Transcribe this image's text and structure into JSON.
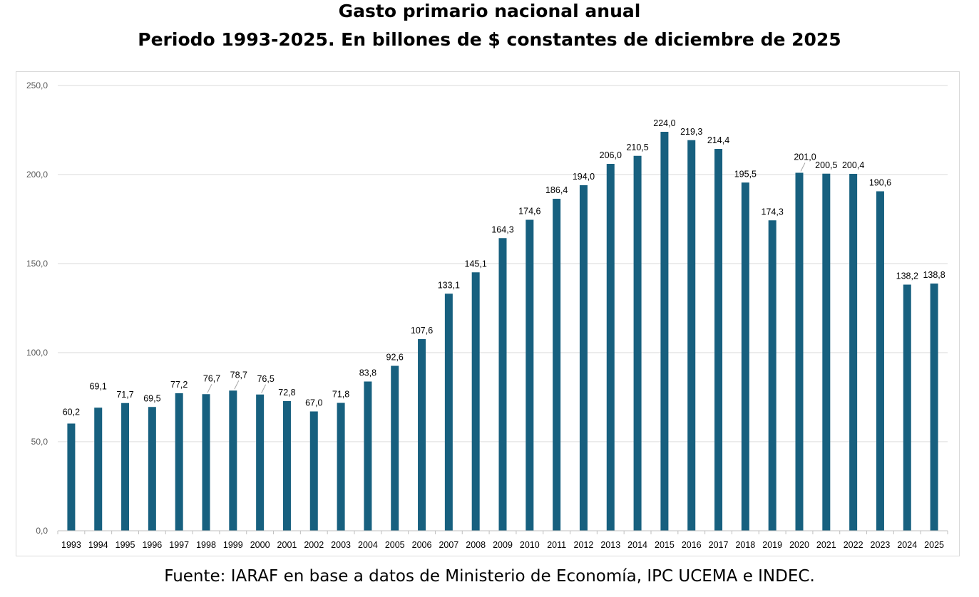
{
  "title_line1": "Gasto primario nacional anual",
  "title_line2": "Periodo 1993-2025. En billones de $ constantes de diciembre de 2025",
  "source": "Fuente: IARAF en base a datos de Ministerio de Economía, IPC UCEMA e INDEC.",
  "chart_data": {
    "type": "bar",
    "title": "Gasto primario nacional anual",
    "subtitle": "Periodo 1993-2025. En billones de $ constantes de diciembre de 2025",
    "categories": [
      "1993",
      "1994",
      "1995",
      "1996",
      "1997",
      "1998",
      "1999",
      "2000",
      "2001",
      "2002",
      "2003",
      "2004",
      "2005",
      "2006",
      "2007",
      "2008",
      "2009",
      "2010",
      "2011",
      "2012",
      "2013",
      "2014",
      "2015",
      "2016",
      "2017",
      "2018",
      "2019",
      "2020",
      "2021",
      "2022",
      "2023",
      "2024",
      "2025"
    ],
    "values": [
      60.2,
      69.1,
      71.7,
      69.5,
      77.2,
      76.7,
      78.7,
      76.5,
      72.8,
      67.0,
      71.8,
      83.8,
      92.6,
      107.6,
      133.1,
      145.1,
      164.3,
      174.6,
      186.4,
      194.0,
      206.0,
      210.5,
      224.0,
      219.3,
      214.4,
      195.5,
      174.3,
      201.0,
      200.5,
      200.4,
      190.6,
      138.2,
      138.8
    ],
    "value_labels": [
      "60,2",
      "69,1",
      "71,7",
      "69,5",
      "77,2",
      "76,7",
      "78,7",
      "76,5",
      "72,8",
      "67,0",
      "71,8",
      "83,8",
      "92,6",
      "107,6",
      "133,1",
      "145,1",
      "164,3",
      "174,6",
      "186,4",
      "194,0",
      "206,0",
      "210,5",
      "224,0",
      "219,3",
      "214,4",
      "195,5",
      "174,3",
      "201,0",
      "200,5",
      "200,4",
      "190,6",
      "138,2",
      "138,8"
    ],
    "yticks": [
      "0,0",
      "50,0",
      "100,0",
      "150,0",
      "200,0",
      "250,0"
    ],
    "ylim": [
      0,
      250
    ],
    "grid": true,
    "legend": "none",
    "bar_color": "#17607f",
    "grid_color": "#d9d9d9"
  }
}
